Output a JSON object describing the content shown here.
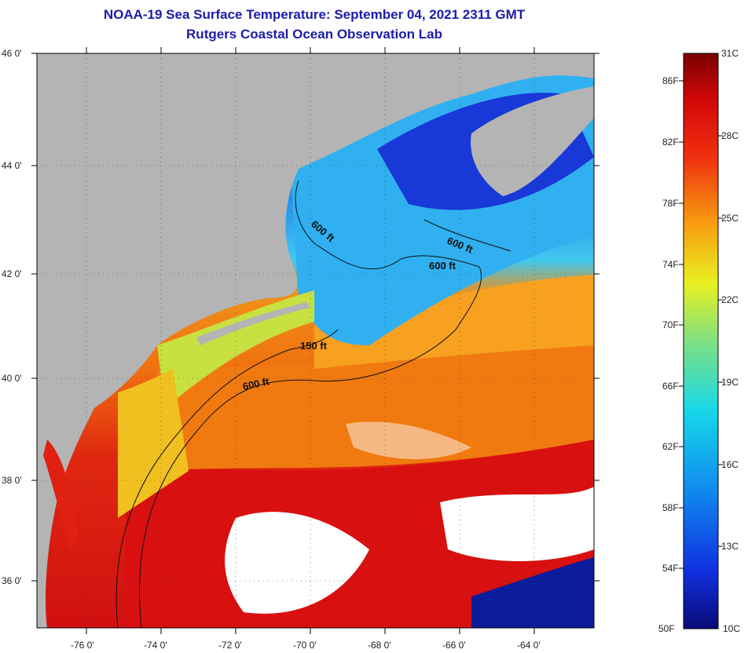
{
  "header": {
    "title": "NOAA-19 Sea Surface Temperature:  September 04, 2021 2311 GMT",
    "subtitle": "Rutgers Coastal Ocean Observation Lab"
  },
  "map": {
    "lat_labels": [
      "46 0'",
      "44 0'",
      "42 0'",
      "40 0'",
      "38 0'",
      "36 0'"
    ],
    "lon_labels": [
      "-76 0'",
      "-74 0'",
      "-72 0'",
      "-70 0'",
      "-68 0'",
      "-66 0'",
      "-64 0'"
    ],
    "contour_labels": [
      "600 ft",
      "600 ft",
      "600 ft",
      "150 ft",
      "600 ft"
    ],
    "colors": {
      "land": "#b4b4b4",
      "cloud": "#ffffff",
      "warm": "#d81010",
      "orange": "#f07a10",
      "cold": "#1030d0"
    }
  },
  "colorbar": {
    "celsius_labels": [
      "31C",
      "28C",
      "25C",
      "22C",
      "19C",
      "16C",
      "13C",
      "10C"
    ],
    "fahrenheit_labels": [
      "86F",
      "82F",
      "78F",
      "74F",
      "70F",
      "66F",
      "62F",
      "58F",
      "54F",
      "50F"
    ],
    "min_c": 10,
    "max_c": 31
  }
}
